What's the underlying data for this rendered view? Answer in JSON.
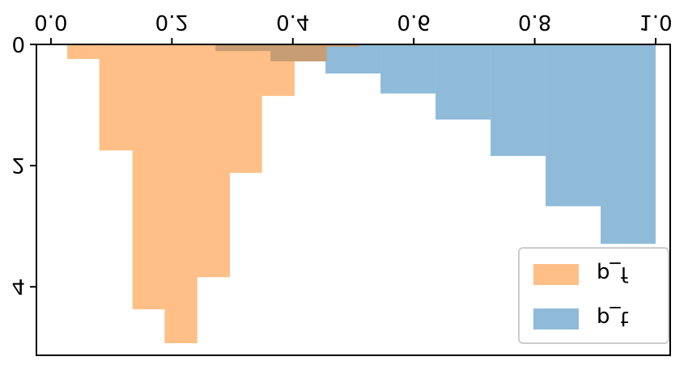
{
  "chart_data": {
    "type": "histogram",
    "series": [
      {
        "name": "p_t",
        "color": "#1f77b4",
        "bins": [
          0.272,
          0.363,
          0.454,
          0.545,
          0.636,
          0.727,
          0.818,
          0.909,
          1.0
        ],
        "values": [
          0.11,
          0.28,
          0.48,
          0.81,
          1.24,
          1.84,
          2.67,
          3.29
        ]
      },
      {
        "name": "p_f",
        "color": "#ff7f0e",
        "bins": [
          0.027,
          0.08,
          0.135,
          0.188,
          0.242,
          0.296,
          0.349,
          0.403,
          0.456,
          0.51
        ],
        "values": [
          0.24,
          1.75,
          4.37,
          4.93,
          3.84,
          2.12,
          0.85,
          0.28,
          0.04
        ]
      }
    ],
    "xlim": [
      -0.024,
      1.024
    ],
    "ylim": [
      0,
      5.13
    ],
    "xticks": [
      {
        "value": 0,
        "label": "0.0"
      },
      {
        "value": 0.2,
        "label": "0.2"
      },
      {
        "value": 0.4,
        "label": "0.4"
      },
      {
        "value": 0.6,
        "label": "0.6"
      },
      {
        "value": 0.8,
        "label": "0.8"
      },
      {
        "value": 1.0,
        "label": "1.0"
      }
    ],
    "yticks": [
      0,
      2,
      4
    ],
    "legend": "upper right",
    "flipped": "vertical"
  }
}
